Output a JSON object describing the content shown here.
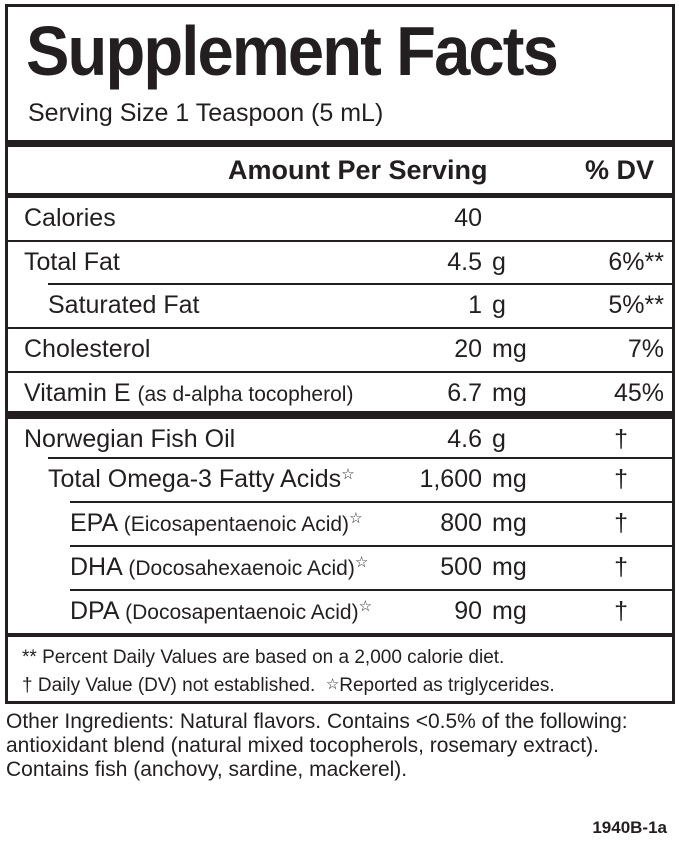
{
  "title": "Supplement Facts",
  "serving_size": "Serving Size 1 Teaspoon (5 mL)",
  "header": {
    "amount": "Amount Per Serving",
    "dv": "% DV"
  },
  "rows": [
    {
      "name": "Calories",
      "amount": "40",
      "unit": "",
      "dv": ""
    },
    {
      "name": "Total Fat",
      "amount": "4.5",
      "unit": "g",
      "dv": "6%**"
    },
    {
      "name": "Saturated Fat",
      "amount": "1",
      "unit": "g",
      "dv": "5%**"
    },
    {
      "name": "Cholesterol",
      "amount": "20",
      "unit": "mg",
      "dv": "7%"
    },
    {
      "name": "Vitamin E",
      "note": "(as d-alpha tocopherol)",
      "amount": "6.7",
      "unit": "mg",
      "dv": "45%"
    }
  ],
  "rows2": [
    {
      "name": "Norwegian Fish Oil",
      "amount": "4.6",
      "unit": "g",
      "dv": "†"
    },
    {
      "name": "Total Omega-3 Fatty Acids",
      "star": "☆",
      "amount": "1,600",
      "unit": "mg",
      "dv": "†"
    },
    {
      "name": "EPA",
      "note": "(Eicosapentaenoic Acid)",
      "star": "☆",
      "amount": "800",
      "unit": "mg",
      "dv": "†"
    },
    {
      "name": "DHA",
      "note": "(Docosahexaenoic Acid)",
      "star": "☆",
      "amount": "500",
      "unit": "mg",
      "dv": "†"
    },
    {
      "name": "DPA",
      "note": "(Docosapentaenoic Acid)",
      "star": "☆",
      "amount": "90",
      "unit": "mg",
      "dv": "†"
    }
  ],
  "footnotes": {
    "line1": "** Percent Daily Values are based on a 2,000 calorie diet.",
    "line2a": "† Daily Value (DV) not established.",
    "star": "☆",
    "line2b": "Reported as triglycerides."
  },
  "other_ingredients": "Other Ingredients: Natural flavors. Contains <0.5% of the following: antioxidant blend (natural mixed tocopherols, rosemary extract). Contains fish (anchovy, sardine, mackerel).",
  "code": "1940B-1a"
}
